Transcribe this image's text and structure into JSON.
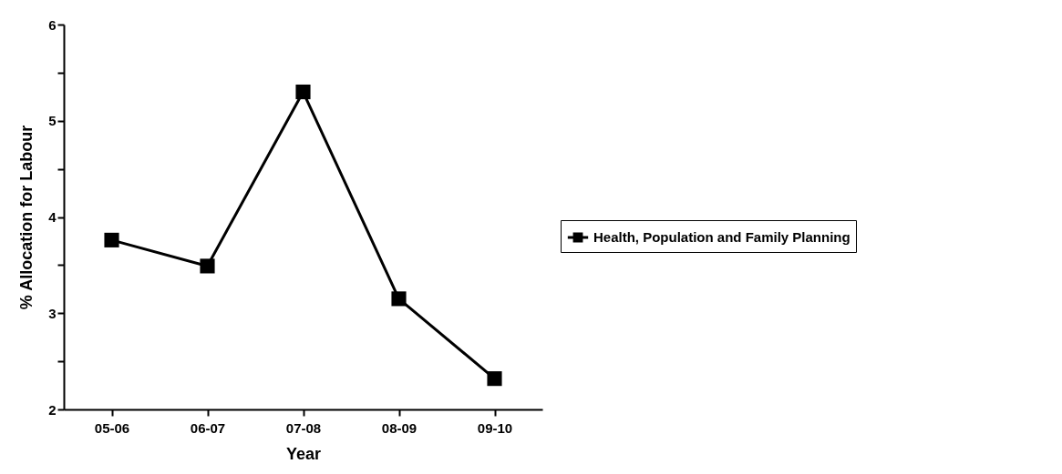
{
  "chart_data": {
    "type": "line",
    "xlabel": "Year",
    "ylabel": "% Allocation for Labour",
    "categories": [
      "05-06",
      "06-07",
      "07-08",
      "08-09",
      "09-10"
    ],
    "series": [
      {
        "name": "Health, Population and Family Planning",
        "color": "#000000",
        "values": [
          3.76,
          3.49,
          5.3,
          3.15,
          2.32
        ]
      }
    ],
    "ylim": [
      2,
      6
    ],
    "yticks": [
      2,
      {
        "value": 2.5,
        "label": null
      },
      3,
      {
        "value": 3.5,
        "label": null
      },
      4,
      {
        "value": 4.5,
        "label": null
      },
      5,
      {
        "value": 5.5,
        "label": null
      },
      6
    ],
    "marker": "square",
    "line_style": "solid",
    "grid": false,
    "legend": "right"
  }
}
